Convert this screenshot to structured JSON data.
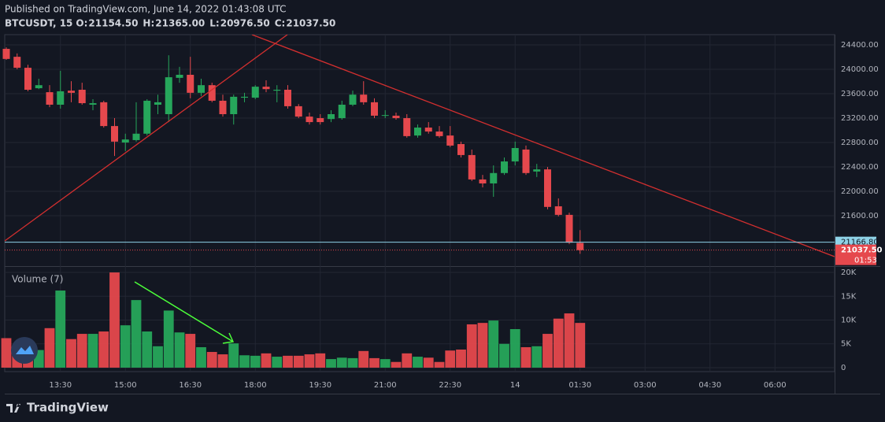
{
  "chart_data": {
    "type": "candlestick",
    "published": "Published on TradingView.com, June 14, 2022 01:43:08 UTC",
    "symbol": "BTCUSDT, 15",
    "ohlc_legend": [
      {
        "key": "O:",
        "value": "21154.50"
      },
      {
        "key": "H:",
        "value": "21365.00"
      },
      {
        "key": "L:",
        "value": "20976.50"
      },
      {
        "key": "C:",
        "value": "21037.50"
      }
    ],
    "volume_label": "Volume (7)",
    "brand": "TradingView",
    "up_color": "#26a65b",
    "down_color": "#e5484d",
    "grid": true,
    "categories": [
      null,
      null,
      null,
      null,
      null,
      "13:30",
      null,
      null,
      null,
      null,
      null,
      "15:00",
      null,
      null,
      null,
      null,
      null,
      "16:30",
      null,
      null,
      null,
      null,
      null,
      "18:00",
      null,
      null,
      null,
      null,
      null,
      "19:30",
      null,
      null,
      null,
      null,
      null,
      "21:00",
      null,
      null,
      null,
      null,
      null,
      "22:30",
      null,
      null,
      null,
      null,
      null,
      "14",
      null,
      null,
      null,
      null,
      null,
      "01:30",
      null,
      null,
      null,
      null,
      null,
      "03:00",
      null,
      null,
      null,
      null,
      null,
      "04:30",
      null,
      null,
      null,
      null,
      null,
      "06:00",
      null,
      null,
      null,
      null,
      null
    ],
    "open": [
      24335,
      24205,
      24025,
      23690,
      23625,
      23420,
      23650,
      23665,
      23420,
      23460,
      23070,
      22800,
      22840,
      22945,
      23420,
      23265,
      23860,
      23910,
      23615,
      23740,
      23485,
      23265,
      23535,
      23535,
      23715,
      23650,
      23665,
      23395,
      23225,
      23200,
      23185,
      23200,
      23420,
      23585,
      23460,
      23240,
      23240,
      23200,
      22915,
      23045,
      22980,
      22915,
      22775,
      22595,
      22195,
      22130,
      22300,
      22490,
      22685,
      22325,
      22360,
      21755,
      21615,
      21154.5,
      null,
      null,
      null,
      null,
      null,
      null,
      null,
      null,
      null,
      null,
      null,
      null,
      null,
      null,
      null,
      null,
      null,
      null,
      null,
      null,
      null,
      null,
      null
    ],
    "high": [
      24360,
      24260,
      24075,
      23845,
      23740,
      23975,
      23805,
      23780,
      23510,
      23485,
      23200,
      22945,
      23460,
      23510,
      23585,
      24230,
      24040,
      24205,
      23845,
      23780,
      23585,
      23585,
      23615,
      23740,
      23820,
      23740,
      23740,
      23430,
      23290,
      23265,
      23330,
      23485,
      23650,
      23805,
      23525,
      23330,
      23290,
      23265,
      23095,
      23135,
      23070,
      23070,
      22815,
      22685,
      22270,
      22425,
      22555,
      22815,
      22750,
      22450,
      22400,
      21885,
      21650,
      21365,
      null,
      null,
      null,
      null,
      null,
      null,
      null,
      null,
      null,
      null,
      null,
      null,
      null,
      null,
      null,
      null,
      null,
      null,
      null,
      null,
      null,
      null,
      null
    ],
    "low": [
      24155,
      24000,
      23640,
      23675,
      23380,
      23355,
      23460,
      23420,
      23330,
      23045,
      22580,
      22660,
      22815,
      22915,
      23265,
      23135,
      23780,
      23525,
      23560,
      23460,
      23225,
      23095,
      23460,
      23510,
      23625,
      23460,
      23355,
      23200,
      23095,
      23095,
      23135,
      23175,
      23395,
      23420,
      23200,
      23200,
      23175,
      22880,
      22880,
      22945,
      22880,
      22725,
      22555,
      22170,
      22065,
      21910,
      22270,
      22425,
      22270,
      22235,
      21705,
      21590,
      21135,
      20976.5,
      null,
      null,
      null,
      null,
      null,
      null,
      null,
      null,
      null,
      null,
      null,
      null,
      null,
      null,
      null,
      null,
      null,
      null,
      null,
      null,
      null,
      null,
      null
    ],
    "close": [
      24170,
      24025,
      23665,
      23740,
      23420,
      23640,
      23615,
      23445,
      23445,
      23070,
      22815,
      22850,
      22945,
      23485,
      23460,
      23870,
      23910,
      23615,
      23740,
      23485,
      23265,
      23550,
      23550,
      23715,
      23675,
      23665,
      23395,
      23225,
      23135,
      23135,
      23265,
      23420,
      23585,
      23460,
      23240,
      23250,
      23200,
      22905,
      23045,
      22980,
      22905,
      22750,
      22595,
      22195,
      22130,
      22300,
      22490,
      22710,
      22300,
      22360,
      21745,
      21615,
      21160,
      21037.5,
      null,
      null,
      null,
      null,
      null,
      null,
      null,
      null,
      null,
      null,
      null,
      null,
      null,
      null,
      null,
      null,
      null,
      null,
      null,
      null,
      null,
      null,
      null
    ],
    "volume": [
      6200,
      3600,
      3700,
      3700,
      8300,
      16200,
      6000,
      7100,
      7100,
      7600,
      20000,
      8900,
      14200,
      7600,
      4500,
      12000,
      7400,
      7100,
      4300,
      3300,
      2800,
      5100,
      2600,
      2500,
      3000,
      2300,
      2500,
      2500,
      2800,
      3000,
      1800,
      2100,
      2000,
      3500,
      2000,
      1800,
      1200,
      3000,
      2300,
      2100,
      1200,
      3600,
      3800,
      9100,
      9400,
      9900,
      5000,
      8100,
      4300,
      4500,
      7100,
      10300,
      11400,
      9400,
      null,
      null,
      null,
      null,
      null,
      null,
      null,
      null,
      null,
      null,
      null,
      null,
      null,
      null,
      null,
      null,
      null,
      null,
      null,
      null,
      null,
      null,
      null
    ],
    "ylim": [
      20775,
      24568
    ],
    "yticks": [
      {
        "value": 21600,
        "label": "21600.00"
      },
      {
        "value": 22000,
        "label": "22000.00"
      },
      {
        "value": 22400,
        "label": "22400.00"
      },
      {
        "value": 22800,
        "label": "22800.00"
      },
      {
        "value": 23200,
        "label": "23200.00"
      },
      {
        "value": 23600,
        "label": "23600.00"
      },
      {
        "value": 24000,
        "label": "24000.00"
      },
      {
        "value": 24400,
        "label": "24400.00"
      }
    ],
    "volume_ylim": [
      -500,
      21000
    ],
    "volume_ticks": [
      0,
      {
        "value": 5000,
        "label": "5K"
      },
      {
        "value": 10000,
        "label": "10K"
      },
      {
        "value": 15000,
        "label": "15K"
      },
      {
        "value": 20000,
        "label": "20K"
      }
    ],
    "price_line": {
      "value": 21166.8,
      "label": "21166.80",
      "color": "#8fd3e8"
    },
    "last_price": {
      "label": "21037.50",
      "countdown": "01:53"
    }
  }
}
